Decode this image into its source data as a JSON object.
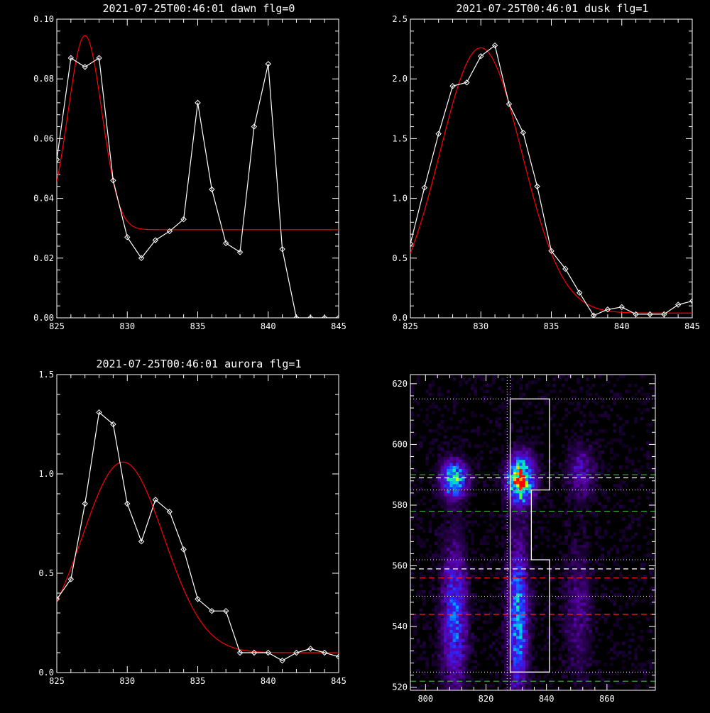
{
  "chart_data": [
    {
      "type": "line",
      "title": "2021-07-25T00:46:01 dawn flg=0",
      "xlabel": "",
      "ylabel": "",
      "xlim": [
        825,
        845
      ],
      "ylim": [
        0,
        0.1
      ],
      "xticks": [
        825,
        830,
        835,
        840,
        845
      ],
      "yticks": [
        0.0,
        0.02,
        0.04,
        0.06,
        0.08,
        0.1
      ],
      "ytick_labels": [
        "0.00",
        "0.02",
        "0.04",
        "0.06",
        "0.08",
        "0.10"
      ],
      "series": [
        {
          "color": "#ffffff",
          "markers": "diamond",
          "x": [
            825,
            826,
            827,
            828,
            829,
            830,
            831,
            832,
            833,
            834,
            835,
            836,
            837,
            838,
            839,
            840,
            841,
            842,
            843,
            844,
            845
          ],
          "y": [
            0.053,
            0.087,
            0.084,
            0.087,
            0.046,
            0.027,
            0.02,
            0.026,
            0.029,
            0.033,
            0.072,
            0.043,
            0.025,
            0.022,
            0.064,
            0.085,
            0.023,
            0.0,
            0.0,
            0.0,
            0.0
          ]
        },
        {
          "color": "#ff0000",
          "fit": "gaussian",
          "amp": 0.065,
          "center": 827.0,
          "sigma": 1.2,
          "offset": 0.0295
        }
      ]
    },
    {
      "type": "line",
      "title": "2021-07-25T00:46:01 dusk flg=1",
      "xlabel": "",
      "ylabel": "",
      "xlim": [
        825,
        845
      ],
      "ylim": [
        0,
        2.5
      ],
      "xticks": [
        825,
        830,
        835,
        840,
        845
      ],
      "yticks": [
        0.0,
        0.5,
        1.0,
        1.5,
        2.0,
        2.5
      ],
      "ytick_labels": [
        "0.0",
        "0.5",
        "1.0",
        "1.5",
        "2.0",
        "2.5"
      ],
      "series": [
        {
          "color": "#ffffff",
          "markers": "diamond",
          "x": [
            825,
            826,
            827,
            828,
            829,
            830,
            831,
            832,
            833,
            834,
            835,
            836,
            837,
            838,
            839,
            840,
            841,
            842,
            843,
            844,
            845
          ],
          "y": [
            0.62,
            1.09,
            1.54,
            1.94,
            1.97,
            2.19,
            2.28,
            1.79,
            1.55,
            1.1,
            0.56,
            0.41,
            0.21,
            0.02,
            0.07,
            0.09,
            0.03,
            0.03,
            0.03,
            0.11,
            0.14
          ]
        },
        {
          "color": "#ff0000",
          "fit": "gaussian",
          "amp": 2.22,
          "center": 830.0,
          "sigma": 2.9,
          "offset": 0.04
        }
      ]
    },
    {
      "type": "line",
      "title": "2021-07-25T00:46:01 aurora flg=1",
      "xlabel": "",
      "ylabel": "",
      "xlim": [
        825,
        845
      ],
      "ylim": [
        0,
        1.5
      ],
      "xticks": [
        825,
        830,
        835,
        840,
        845
      ],
      "yticks": [
        0.0,
        0.5,
        1.0,
        1.5
      ],
      "ytick_labels": [
        "0.0",
        "0.5",
        "1.0",
        "1.5"
      ],
      "series": [
        {
          "color": "#ffffff",
          "markers": "diamond",
          "x": [
            825,
            826,
            827,
            828,
            829,
            830,
            831,
            832,
            833,
            834,
            835,
            836,
            837,
            838,
            839,
            840,
            841,
            842,
            843,
            844,
            845
          ],
          "y": [
            0.37,
            0.47,
            0.85,
            1.31,
            1.25,
            0.85,
            0.66,
            0.87,
            0.81,
            0.62,
            0.37,
            0.31,
            0.31,
            0.1,
            0.1,
            0.1,
            0.06,
            0.1,
            0.12,
            0.1,
            0.08
          ]
        },
        {
          "color": "#ff0000",
          "fit": "gaussian",
          "amp": 0.96,
          "center": 829.7,
          "sigma": 2.9,
          "offset": 0.1
        }
      ]
    },
    {
      "type": "heatmap",
      "title": "",
      "xlabel": "",
      "ylabel": "",
      "xlim": [
        795,
        876
      ],
      "ylim": [
        519,
        623
      ],
      "xticks": [
        800,
        820,
        840,
        860
      ],
      "yticks": [
        520,
        540,
        560,
        580,
        600,
        620
      ],
      "colormap": "rainbow-on-black",
      "bright_regions": [
        {
          "x": 809,
          "y": 588,
          "sx": 2.8,
          "sy": 4,
          "peak": 0.7
        },
        {
          "x": 831,
          "y": 588,
          "sx": 2.8,
          "sy": 5,
          "peak": 1.0
        },
        {
          "x": 830,
          "y": 543,
          "sx": 2.2,
          "sy": 16,
          "peak": 0.55
        },
        {
          "x": 809,
          "y": 543,
          "sx": 2.8,
          "sy": 16,
          "peak": 0.4
        },
        {
          "x": 851,
          "y": 590,
          "sx": 3,
          "sy": 6,
          "peak": 0.22
        },
        {
          "x": 850,
          "y": 545,
          "sx": 3,
          "sy": 14,
          "peak": 0.16
        }
      ],
      "overlays": {
        "white_box_path": [
          [
            828,
            525
          ],
          [
            841,
            525
          ],
          [
            841,
            562
          ],
          [
            835,
            562
          ],
          [
            835,
            585
          ],
          [
            841,
            585
          ],
          [
            841,
            615
          ],
          [
            828,
            615
          ],
          [
            828,
            525
          ]
        ],
        "white_box_color": "#ffffff",
        "vertical_dotted_x": [
          827,
          828
        ],
        "horizontal_dotted_y": [
          525,
          550,
          562,
          585,
          615
        ],
        "dotted_color": "#ffffff",
        "white_dashed_y": [
          559,
          589
        ],
        "white_dashed_color": "#ffffff",
        "green_dashed_y": [
          522,
          578,
          590
        ],
        "green_dashed_color": "#3fb63f",
        "red_dashed_y": [
          544,
          556
        ],
        "red_dashed_color": "#ff2020"
      }
    }
  ]
}
